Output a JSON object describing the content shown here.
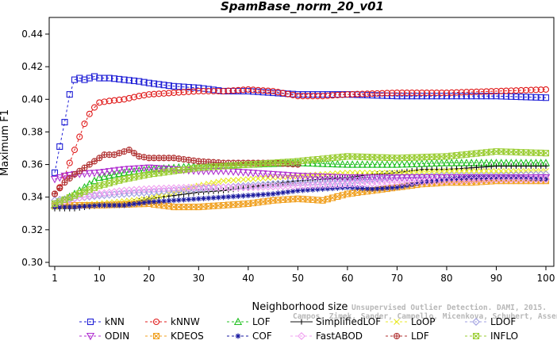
{
  "chart_data": {
    "type": "line",
    "title": "SpamBase_norm_20_v01",
    "xlabel": "Neighborhood size",
    "ylabel": "Maximum F1",
    "xlim": [
      1,
      100
    ],
    "ylim": [
      0.3,
      0.45
    ],
    "x_ticks": [
      1,
      10,
      20,
      30,
      40,
      50,
      60,
      70,
      80,
      90,
      100
    ],
    "y_ticks": [
      "0.30",
      "0.32",
      "0.34",
      "0.36",
      "0.38",
      "0.40",
      "0.42",
      "0.44"
    ],
    "grid": false,
    "legend_position": "bottom",
    "watermark": [
      "Unsupervised Outlier Detection. DAMI, 2015.",
      "Campos, Zimek, Sander, Campello, Micenkova, Schubert, Assent, Houle"
    ],
    "series": [
      {
        "name": "kNN",
        "color": "#1f1fd6",
        "marker": "square",
        "dashed": true,
        "points": [
          [
            1,
            0.355
          ],
          [
            2,
            0.371
          ],
          [
            3,
            0.386
          ],
          [
            4,
            0.403
          ],
          [
            5,
            0.412
          ],
          [
            6,
            0.413
          ],
          [
            7,
            0.412
          ],
          [
            8,
            0.413
          ],
          [
            9,
            0.414
          ],
          [
            10,
            0.413
          ],
          [
            12,
            0.413
          ],
          [
            15,
            0.412
          ],
          [
            18,
            0.411
          ],
          [
            20,
            0.41
          ],
          [
            25,
            0.408
          ],
          [
            30,
            0.407
          ],
          [
            35,
            0.405
          ],
          [
            40,
            0.405
          ],
          [
            45,
            0.404
          ],
          [
            50,
            0.403
          ],
          [
            60,
            0.403
          ],
          [
            70,
            0.402
          ],
          [
            80,
            0.402
          ],
          [
            90,
            0.402
          ],
          [
            100,
            0.401
          ]
        ]
      },
      {
        "name": "kNNW",
        "color": "#e01b1b",
        "marker": "circle",
        "dashed": true,
        "points": [
          [
            1,
            0.342
          ],
          [
            2,
            0.346
          ],
          [
            3,
            0.353
          ],
          [
            4,
            0.361
          ],
          [
            5,
            0.369
          ],
          [
            6,
            0.377
          ],
          [
            7,
            0.385
          ],
          [
            8,
            0.391
          ],
          [
            9,
            0.395
          ],
          [
            10,
            0.398
          ],
          [
            12,
            0.399
          ],
          [
            15,
            0.4
          ],
          [
            18,
            0.402
          ],
          [
            20,
            0.403
          ],
          [
            25,
            0.404
          ],
          [
            30,
            0.405
          ],
          [
            35,
            0.405
          ],
          [
            40,
            0.406
          ],
          [
            45,
            0.405
          ],
          [
            50,
            0.402
          ],
          [
            55,
            0.402
          ],
          [
            60,
            0.403
          ],
          [
            70,
            0.404
          ],
          [
            80,
            0.404
          ],
          [
            90,
            0.405
          ],
          [
            100,
            0.406
          ]
        ]
      },
      {
        "name": "LOF",
        "color": "#22c022",
        "marker": "triangle-up",
        "dashed": true,
        "points": [
          [
            1,
            0.335
          ],
          [
            5,
            0.342
          ],
          [
            10,
            0.352
          ],
          [
            15,
            0.355
          ],
          [
            20,
            0.357
          ],
          [
            25,
            0.358
          ],
          [
            30,
            0.359
          ],
          [
            40,
            0.36
          ],
          [
            50,
            0.361
          ],
          [
            60,
            0.36
          ],
          [
            70,
            0.36
          ],
          [
            80,
            0.361
          ],
          [
            90,
            0.361
          ],
          [
            100,
            0.361
          ]
        ]
      },
      {
        "name": "SimplifiedLOF",
        "color": "#111111",
        "marker": "plus",
        "dashed": false,
        "points": [
          [
            1,
            0.333
          ],
          [
            5,
            0.333
          ],
          [
            10,
            0.335
          ],
          [
            15,
            0.336
          ],
          [
            20,
            0.339
          ],
          [
            25,
            0.341
          ],
          [
            30,
            0.343
          ],
          [
            35,
            0.344
          ],
          [
            40,
            0.346
          ],
          [
            45,
            0.348
          ],
          [
            50,
            0.35
          ],
          [
            55,
            0.351
          ],
          [
            60,
            0.352
          ],
          [
            65,
            0.354
          ],
          [
            70,
            0.355
          ],
          [
            75,
            0.357
          ],
          [
            80,
            0.357
          ],
          [
            85,
            0.358
          ],
          [
            90,
            0.359
          ],
          [
            95,
            0.359
          ],
          [
            100,
            0.359
          ]
        ]
      },
      {
        "name": "LoOP",
        "color": "#e8e82a",
        "marker": "x",
        "dashed": true,
        "points": [
          [
            1,
            0.334
          ],
          [
            10,
            0.336
          ],
          [
            20,
            0.339
          ],
          [
            25,
            0.343
          ],
          [
            30,
            0.347
          ],
          [
            35,
            0.35
          ],
          [
            40,
            0.351
          ],
          [
            45,
            0.352
          ],
          [
            50,
            0.353
          ],
          [
            60,
            0.355
          ],
          [
            70,
            0.355
          ],
          [
            80,
            0.356
          ],
          [
            90,
            0.356
          ],
          [
            100,
            0.356
          ]
        ]
      },
      {
        "name": "LDOF",
        "color": "#a0a0e0",
        "marker": "diamond",
        "dashed": true,
        "points": [
          [
            1,
            0.338
          ],
          [
            10,
            0.341
          ],
          [
            20,
            0.343
          ],
          [
            30,
            0.345
          ],
          [
            40,
            0.347
          ],
          [
            50,
            0.349
          ],
          [
            60,
            0.35
          ],
          [
            70,
            0.352
          ],
          [
            80,
            0.353
          ],
          [
            90,
            0.353
          ],
          [
            100,
            0.354
          ]
        ]
      },
      {
        "name": "ODIN",
        "color": "#b030d0",
        "marker": "triangle-down",
        "dashed": true,
        "points": [
          [
            1,
            0.351
          ],
          [
            3,
            0.353
          ],
          [
            5,
            0.354
          ],
          [
            10,
            0.355
          ],
          [
            15,
            0.357
          ],
          [
            20,
            0.358
          ],
          [
            25,
            0.357
          ],
          [
            30,
            0.356
          ],
          [
            35,
            0.356
          ],
          [
            40,
            0.355
          ],
          [
            50,
            0.353
          ],
          [
            60,
            0.352
          ],
          [
            70,
            0.352
          ],
          [
            80,
            0.352
          ],
          [
            90,
            0.352
          ],
          [
            100,
            0.352
          ]
        ]
      },
      {
        "name": "KDEOS",
        "color": "#f0a020",
        "marker": "square-x",
        "dashed": true,
        "points": [
          [
            1,
            0.335
          ],
          [
            10,
            0.335
          ],
          [
            20,
            0.336
          ],
          [
            25,
            0.334
          ],
          [
            30,
            0.334
          ],
          [
            35,
            0.335
          ],
          [
            40,
            0.336
          ],
          [
            45,
            0.338
          ],
          [
            50,
            0.339
          ],
          [
            55,
            0.338
          ],
          [
            60,
            0.342
          ],
          [
            65,
            0.344
          ],
          [
            70,
            0.346
          ],
          [
            75,
            0.348
          ],
          [
            80,
            0.349
          ],
          [
            85,
            0.349
          ],
          [
            90,
            0.35
          ],
          [
            95,
            0.35
          ],
          [
            100,
            0.35
          ]
        ]
      },
      {
        "name": "COF",
        "color": "#1a1aa0",
        "marker": "asterisk",
        "dashed": true,
        "points": [
          [
            1,
            0.334
          ],
          [
            5,
            0.334
          ],
          [
            10,
            0.335
          ],
          [
            15,
            0.335
          ],
          [
            20,
            0.337
          ],
          [
            25,
            0.338
          ],
          [
            30,
            0.339
          ],
          [
            35,
            0.34
          ],
          [
            40,
            0.341
          ],
          [
            45,
            0.342
          ],
          [
            50,
            0.344
          ],
          [
            55,
            0.345
          ],
          [
            60,
            0.346
          ],
          [
            65,
            0.345
          ],
          [
            70,
            0.346
          ],
          [
            75,
            0.349
          ],
          [
            80,
            0.351
          ],
          [
            85,
            0.352
          ],
          [
            90,
            0.352
          ],
          [
            95,
            0.352
          ],
          [
            100,
            0.351
          ]
        ]
      },
      {
        "name": "FastABOD",
        "color": "#f0a0f0",
        "marker": "diamond",
        "dashed": true,
        "points": [
          [
            1,
            0.336
          ],
          [
            5,
            0.339
          ],
          [
            10,
            0.342
          ],
          [
            15,
            0.344
          ],
          [
            20,
            0.345
          ],
          [
            30,
            0.346
          ],
          [
            40,
            0.346
          ],
          [
            50,
            0.347
          ],
          [
            60,
            0.348
          ],
          [
            70,
            0.349
          ],
          [
            80,
            0.35
          ],
          [
            90,
            0.351
          ],
          [
            100,
            0.351
          ]
        ]
      },
      {
        "name": "LDF",
        "color": "#b03030",
        "marker": "circle-plus",
        "dashed": true,
        "points": [
          [
            1,
            0.342
          ],
          [
            3,
            0.349
          ],
          [
            5,
            0.354
          ],
          [
            7,
            0.358
          ],
          [
            9,
            0.362
          ],
          [
            11,
            0.366
          ],
          [
            13,
            0.366
          ],
          [
            15,
            0.368
          ],
          [
            16,
            0.369
          ],
          [
            18,
            0.365
          ],
          [
            20,
            0.364
          ],
          [
            25,
            0.364
          ],
          [
            30,
            0.362
          ],
          [
            35,
            0.361
          ],
          [
            40,
            0.361
          ],
          [
            45,
            0.361
          ],
          [
            50,
            0.36
          ]
        ]
      },
      {
        "name": "INFLO",
        "color": "#9acd32",
        "marker": "square-x",
        "dashed": true,
        "points": [
          [
            1,
            0.336
          ],
          [
            5,
            0.341
          ],
          [
            10,
            0.347
          ],
          [
            15,
            0.351
          ],
          [
            20,
            0.354
          ],
          [
            25,
            0.356
          ],
          [
            30,
            0.358
          ],
          [
            40,
            0.36
          ],
          [
            50,
            0.362
          ],
          [
            60,
            0.365
          ],
          [
            70,
            0.364
          ],
          [
            80,
            0.365
          ],
          [
            90,
            0.368
          ],
          [
            100,
            0.367
          ]
        ]
      }
    ]
  }
}
